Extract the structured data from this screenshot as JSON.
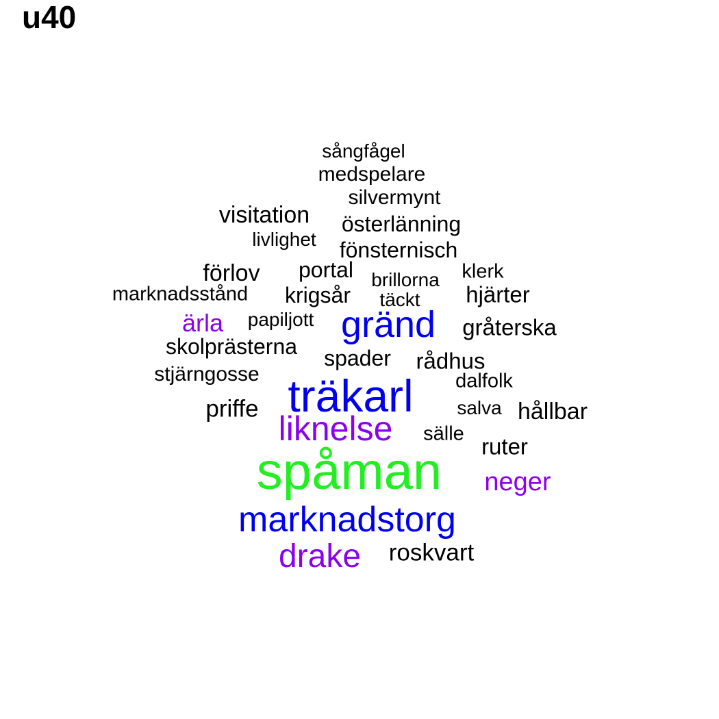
{
  "title": "u40",
  "colors": {
    "black": "#000000",
    "blue": "#0000ee",
    "purple": "#8b00ee",
    "green": "#22ee22"
  },
  "words": [
    {
      "text": "sångfågel",
      "color": "black"
    },
    {
      "text": "medspelare",
      "color": "black"
    },
    {
      "text": "silvermynt",
      "color": "black"
    },
    {
      "text": "visitation",
      "color": "black"
    },
    {
      "text": "österlänning",
      "color": "black"
    },
    {
      "text": "livlighet",
      "color": "black"
    },
    {
      "text": "fönsternisch",
      "color": "black"
    },
    {
      "text": "förlov",
      "color": "black"
    },
    {
      "text": "portal",
      "color": "black"
    },
    {
      "text": "brillorna",
      "color": "black"
    },
    {
      "text": "klerk",
      "color": "black"
    },
    {
      "text": "marknadsstånd",
      "color": "black"
    },
    {
      "text": "krigsår",
      "color": "black"
    },
    {
      "text": "täckt",
      "color": "black"
    },
    {
      "text": "hjärter",
      "color": "black"
    },
    {
      "text": "ärla",
      "color": "purple"
    },
    {
      "text": "papiljott",
      "color": "black"
    },
    {
      "text": "gränd",
      "color": "blue"
    },
    {
      "text": "gråterska",
      "color": "black"
    },
    {
      "text": "skolprästerna",
      "color": "black"
    },
    {
      "text": "spader",
      "color": "black"
    },
    {
      "text": "rådhus",
      "color": "black"
    },
    {
      "text": "stjärngosse",
      "color": "black"
    },
    {
      "text": "träkarl",
      "color": "blue"
    },
    {
      "text": "dalfolk",
      "color": "black"
    },
    {
      "text": "priffe",
      "color": "black"
    },
    {
      "text": "salva",
      "color": "black"
    },
    {
      "text": "hållbar",
      "color": "black"
    },
    {
      "text": "liknelse",
      "color": "purple"
    },
    {
      "text": "sälle",
      "color": "black"
    },
    {
      "text": "ruter",
      "color": "black"
    },
    {
      "text": "spåman",
      "color": "green"
    },
    {
      "text": "neger",
      "color": "purple"
    },
    {
      "text": "marknadstorg",
      "color": "blue"
    },
    {
      "text": "drake",
      "color": "purple"
    },
    {
      "text": "roskvart",
      "color": "black"
    }
  ]
}
